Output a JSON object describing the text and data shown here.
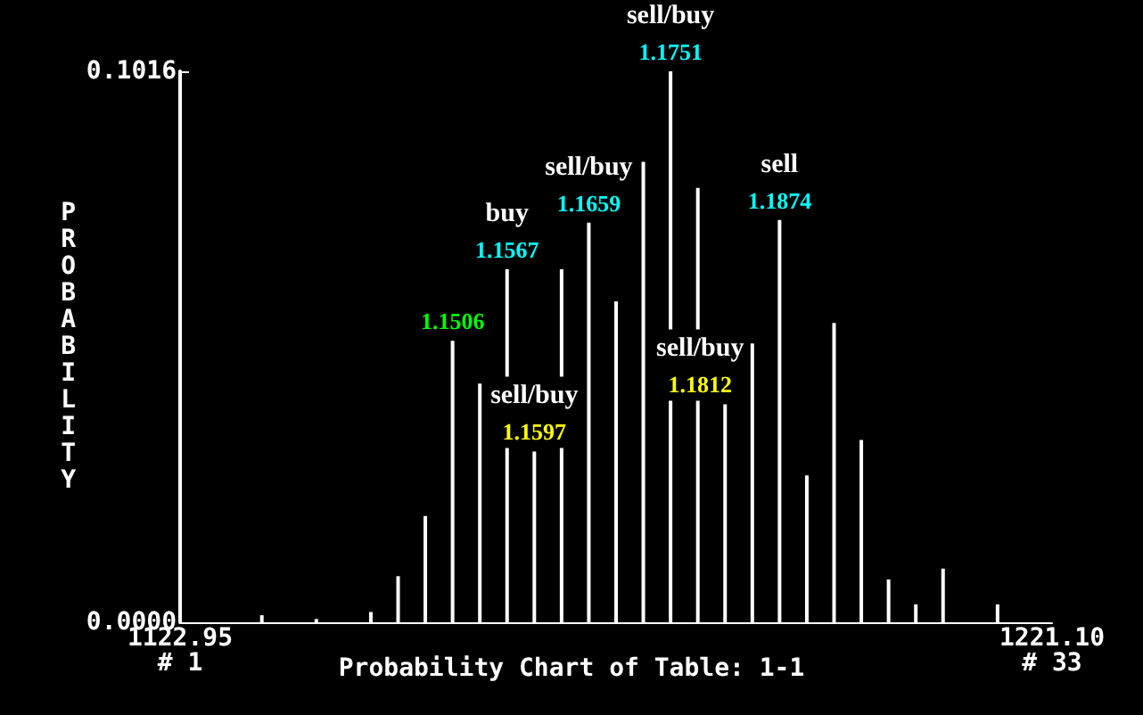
{
  "chart_data": {
    "type": "bar",
    "title": "Probability Chart of Table: 1-1",
    "ylabel": "PROBABILITY",
    "categories": [
      "1122.95\n# 1",
      null,
      null,
      null,
      null,
      null,
      null,
      null,
      null,
      null,
      null,
      null,
      null,
      null,
      null,
      null,
      null,
      null,
      null,
      null,
      null,
      null,
      null,
      null,
      null,
      null,
      null,
      null,
      null,
      null,
      null,
      null,
      "1221.10\n# 33"
    ],
    "values": [
      0,
      0,
      0,
      0.0013,
      0,
      0.0006,
      0,
      0.0019,
      0.0085,
      0.0196,
      0.0519,
      0.044,
      0.0651,
      0.0315,
      0.0651,
      0.0737,
      0.0592,
      0.0849,
      0.1016,
      0.0801,
      0.0402,
      0.0514,
      0.0742,
      0.0271,
      0.0552,
      0.0336,
      0.0079,
      0.0033,
      0.0099,
      0,
      0.0033,
      0,
      0
    ],
    "color": "#ffffff",
    "ylim": [
      0,
      0.1016
    ],
    "yticks": [
      {
        "value": 0,
        "label": "0.0000"
      },
      0.1016
    ],
    "annotations": [
      {
        "text": "1.1506",
        "y": 0.0519
      },
      {
        "text": "buy\n1.1567",
        "y": 0.0651
      },
      {
        "text": "sell/buy\n1.1597",
        "y": 0.0315
      },
      {
        "text": "sell/buy\n1.1659",
        "y": 0.0737
      },
      {
        "text": "sell/buy\n1.1751",
        "y": 0.1016
      },
      {
        "text": "sell/buy\n1.1812",
        "y": 0.0402
      },
      {
        "text": "sell\n1.1874",
        "y": 0.0742
      }
    ]
  }
}
